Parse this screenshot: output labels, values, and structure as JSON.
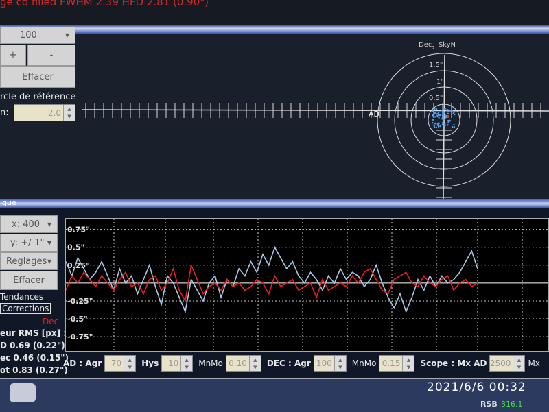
{
  "header": {
    "status_text": "ge co filled FWHM  2.39  HFD  2.81 (0.90\")"
  },
  "target_panel": {
    "scale_select": "100",
    "plus_label": "+",
    "minus_label": "-",
    "clear_label": "Effacer",
    "ref_circle_label": "rcle de référence",
    "radius_label": "n:",
    "radius_value": "2.0",
    "axis_dec_label": "Dec",
    "axis_dec_sub": "2",
    "axis_skyn_label": "SkyN",
    "axis_ra_label": "AD",
    "ring_labels": [
      "1.5\"",
      "1\"",
      "0.5\""
    ]
  },
  "graph_panel": {
    "title": "ique",
    "x_select": "x: 400",
    "y_select": "y: +/-1\"",
    "settings_select": "Reglages",
    "clear_label": "Effacer",
    "trends_label": "Tendances",
    "corrections_label": "Corrections",
    "dec_legend": "Dec",
    "rms_title": "eur RMS [px] :",
    "rms_ra": "D 0.69 (0.22\")",
    "rms_dec": "ec 0.46 (0.15\")",
    "rms_tot": "ot 0.83 (0.27\")"
  },
  "chart_data": {
    "type": "line",
    "ylim": [
      -0.95,
      0.9
    ],
    "y_tick_labels": [
      "0.75\"",
      "0.5\"",
      "0.25\"",
      "-0.25\"",
      "-0.5\"",
      "-0.75\""
    ],
    "y_ticks": [
      0.75,
      0.5,
      0.25,
      -0.25,
      -0.5,
      -0.75
    ],
    "grid": true,
    "colors": {
      "ra": "#a8c8e8",
      "dec": "#e82020"
    },
    "series": [
      {
        "values": [
          0.3,
          0.1,
          0.35,
          0.2,
          0.05,
          0.15,
          0.3,
          0.1,
          -0.1,
          0.2,
          0.0,
          0.1,
          -0.15,
          0.05,
          0.25,
          -0.05,
          -0.3,
          0.1,
          0.0,
          -0.2,
          -0.4,
          0.05,
          -0.1,
          -0.25,
          0.0,
          0.1,
          -0.2,
          0.05,
          -0.05,
          0.2,
          0.1,
          0.3,
          0.15,
          0.4,
          0.25,
          0.5,
          0.35,
          0.2,
          0.3,
          0.1,
          0.0,
          0.15,
          0.05,
          -0.1,
          0.1,
          0.0,
          0.2,
          0.05,
          0.15,
          0.1,
          -0.05,
          0.05,
          0.25,
          0.0,
          -0.2,
          -0.35,
          -0.15,
          -0.4,
          -0.2,
          0.05,
          -0.1,
          0.1,
          -0.05,
          0.1,
          0.0,
          0.05,
          0.15,
          0.3,
          0.45,
          0.2
        ]
      },
      {
        "name": "Dec",
        "values": [
          -0.1,
          0.1,
          0.0,
          0.15,
          0.05,
          -0.05,
          0.1,
          0.0,
          -0.1,
          0.05,
          0.15,
          -0.05,
          0.0,
          -0.15,
          0.05,
          0.1,
          -0.1,
          0.0,
          0.2,
          -0.1,
          -0.25,
          0.25,
          0.05,
          -0.15,
          -0.05,
          0.0,
          -0.1,
          0.05,
          -0.05,
          0.0,
          -0.1,
          -0.05,
          0.05,
          0.0,
          -0.15,
          0.1,
          -0.05,
          0.0,
          0.05,
          -0.1,
          -0.05,
          0.0,
          -0.2,
          0.05,
          -0.1,
          -0.05,
          0.0,
          -0.05,
          0.1,
          0.0,
          0.15,
          0.2,
          0.05,
          -0.1,
          -0.15,
          0.05,
          0.1,
          0.15,
          0.0,
          -0.05,
          0.1,
          0.0,
          -0.05,
          0.05,
          0.1,
          -0.1,
          0.0,
          0.05,
          -0.05,
          0.0
        ]
      }
    ]
  },
  "controls": {
    "ra_agr_label": "AD : Agr",
    "ra_agr_value": "70",
    "hys_label": "Hys",
    "hys_value": "10",
    "ra_minmo_label": "MnMo",
    "ra_minmo_value": "0.10",
    "dec_agr_label": "DEC : Agr",
    "dec_agr_value": "100",
    "dec_minmo_label": "MnMo",
    "dec_minmo_value": "0.15",
    "scope_label": "Scope : Mx AD",
    "scope_value": "2500",
    "mx_label": "Mx"
  },
  "statusbar": {
    "snr_label": "RSB",
    "snr_value": "316.1"
  },
  "photo_timestamp": "2021/6/6 00:32"
}
